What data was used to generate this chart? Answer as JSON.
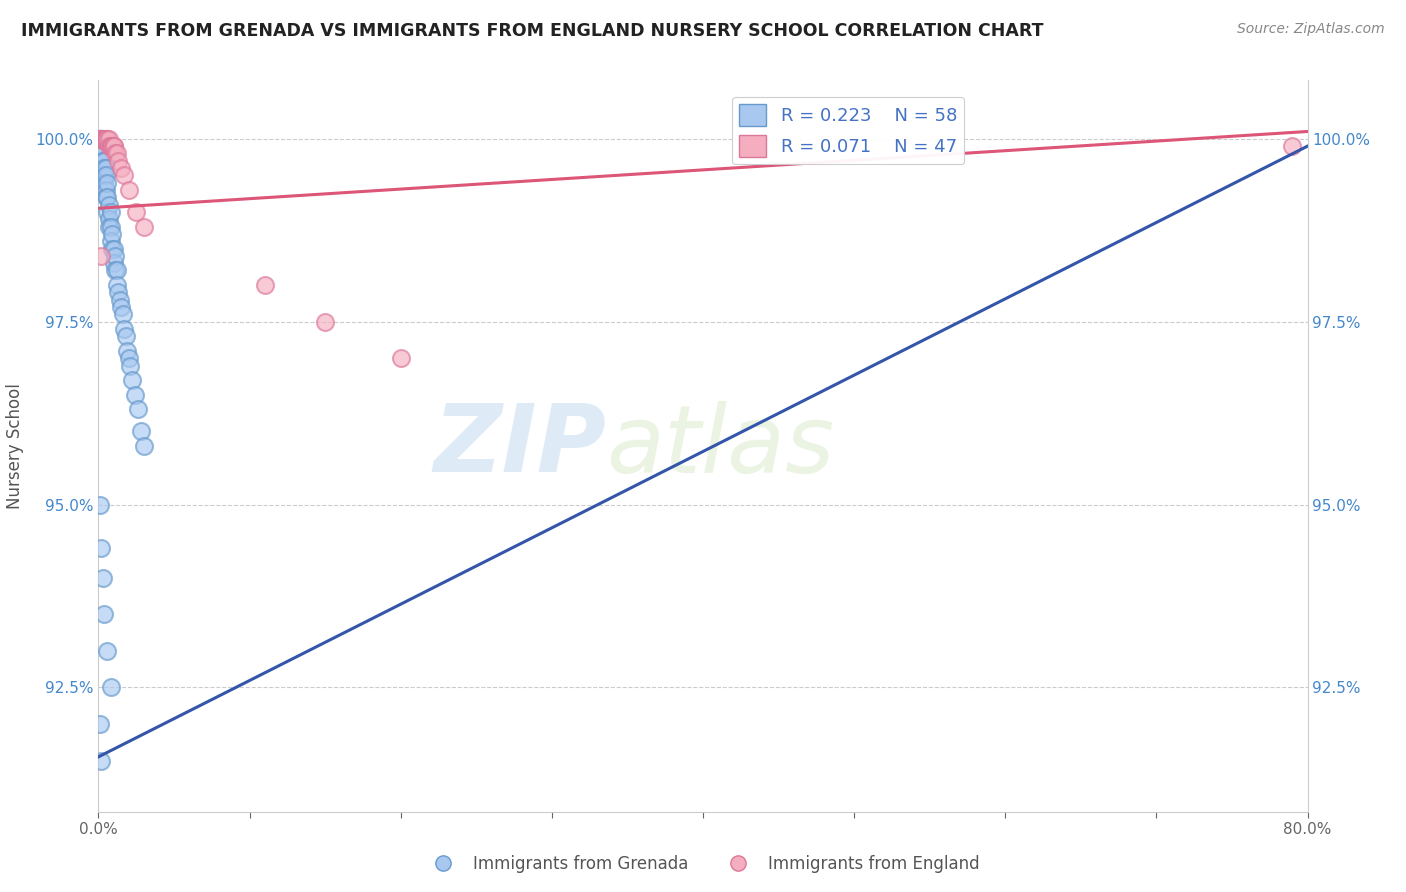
{
  "title": "IMMIGRANTS FROM GRENADA VS IMMIGRANTS FROM ENGLAND NURSERY SCHOOL CORRELATION CHART",
  "source": "Source: ZipAtlas.com",
  "ylabel": "Nursery School",
  "xlim": [
    0.0,
    0.8
  ],
  "ylim": [
    0.908,
    1.008
  ],
  "yticks": [
    0.925,
    0.95,
    0.975,
    1.0
  ],
  "ytick_labels": [
    "92.5%",
    "95.0%",
    "97.5%",
    "100.0%"
  ],
  "xticks": [
    0.0,
    0.1,
    0.2,
    0.3,
    0.4,
    0.5,
    0.6,
    0.7,
    0.8
  ],
  "xtick_labels": [
    "0.0%",
    "",
    "",
    "",
    "",
    "",
    "",
    "",
    "80.0%"
  ],
  "blue_R": 0.223,
  "blue_N": 58,
  "pink_R": 0.071,
  "pink_N": 47,
  "blue_color": "#a8c8f0",
  "pink_color": "#f4aec0",
  "blue_edge": "#6699cc",
  "pink_edge": "#dd7799",
  "blue_line_color": "#3355aa",
  "pink_line_color": "#dd5577",
  "watermark_zip": "ZIP",
  "watermark_atlas": "atlas",
  "background_color": "#ffffff",
  "blue_x": [
    0.001,
    0.001,
    0.002,
    0.002,
    0.002,
    0.002,
    0.003,
    0.003,
    0.003,
    0.003,
    0.003,
    0.004,
    0.004,
    0.004,
    0.004,
    0.005,
    0.005,
    0.005,
    0.005,
    0.006,
    0.006,
    0.006,
    0.007,
    0.007,
    0.007,
    0.008,
    0.008,
    0.008,
    0.009,
    0.009,
    0.01,
    0.01,
    0.011,
    0.011,
    0.012,
    0.012,
    0.013,
    0.014,
    0.015,
    0.016,
    0.017,
    0.018,
    0.019,
    0.02,
    0.021,
    0.022,
    0.024,
    0.026,
    0.028,
    0.03,
    0.001,
    0.002,
    0.003,
    0.004,
    0.006,
    0.008,
    0.001,
    0.002
  ],
  "blue_y": [
    1.0,
    1.0,
    1.0,
    0.999,
    0.999,
    0.998,
    0.999,
    0.998,
    0.997,
    0.997,
    0.996,
    0.997,
    0.996,
    0.995,
    0.994,
    0.996,
    0.995,
    0.993,
    0.992,
    0.994,
    0.992,
    0.99,
    0.991,
    0.989,
    0.988,
    0.99,
    0.988,
    0.986,
    0.987,
    0.985,
    0.985,
    0.983,
    0.984,
    0.982,
    0.982,
    0.98,
    0.979,
    0.978,
    0.977,
    0.976,
    0.974,
    0.973,
    0.971,
    0.97,
    0.969,
    0.967,
    0.965,
    0.963,
    0.96,
    0.958,
    0.95,
    0.944,
    0.94,
    0.935,
    0.93,
    0.925,
    0.92,
    0.915
  ],
  "pink_x": [
    0.001,
    0.001,
    0.001,
    0.001,
    0.001,
    0.001,
    0.001,
    0.001,
    0.001,
    0.001,
    0.002,
    0.002,
    0.002,
    0.002,
    0.002,
    0.003,
    0.003,
    0.003,
    0.003,
    0.004,
    0.004,
    0.004,
    0.005,
    0.005,
    0.006,
    0.006,
    0.007,
    0.007,
    0.008,
    0.008,
    0.009,
    0.009,
    0.01,
    0.01,
    0.011,
    0.012,
    0.013,
    0.015,
    0.017,
    0.02,
    0.025,
    0.03,
    0.11,
    0.15,
    0.2,
    0.79,
    0.002
  ],
  "pink_y": [
    1.0,
    1.0,
    1.0,
    1.0,
    1.0,
    1.0,
    1.0,
    1.0,
    1.0,
    1.0,
    1.0,
    1.0,
    1.0,
    1.0,
    1.0,
    1.0,
    1.0,
    1.0,
    1.0,
    1.0,
    1.0,
    1.0,
    1.0,
    1.0,
    1.0,
    1.0,
    1.0,
    0.999,
    0.999,
    0.999,
    0.999,
    0.999,
    0.999,
    0.999,
    0.998,
    0.998,
    0.997,
    0.996,
    0.995,
    0.993,
    0.99,
    0.988,
    0.98,
    0.975,
    0.97,
    0.999,
    0.984
  ],
  "blue_trendline_x": [
    0.0,
    0.8
  ],
  "blue_trendline_y": [
    0.9155,
    0.999
  ],
  "pink_trendline_x": [
    0.0,
    0.8
  ],
  "pink_trendline_y": [
    0.9905,
    1.001
  ]
}
